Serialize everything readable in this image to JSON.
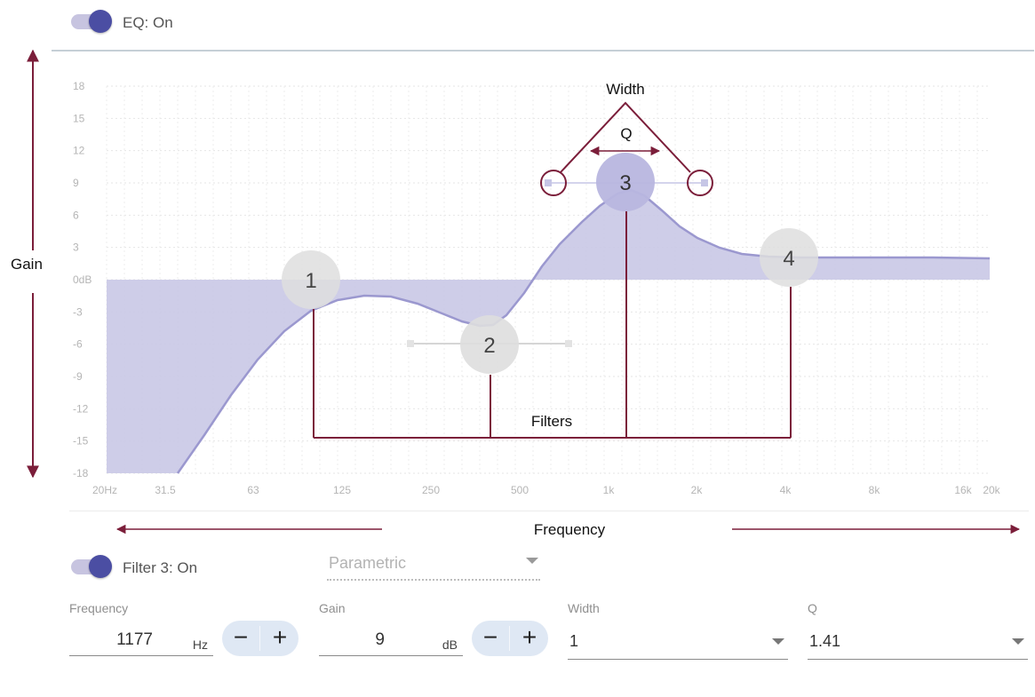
{
  "eq_toggle": {
    "label": "EQ: On",
    "on": true
  },
  "annotations": {
    "gain": "Gain",
    "frequency": "Frequency",
    "width": "Width",
    "q": "Q",
    "filters": "Filters"
  },
  "graph": {
    "y_ticks": [
      "18",
      "15",
      "12",
      "9",
      "6",
      "3",
      "0dB",
      "-3",
      "-6",
      "-9",
      "-12",
      "-15",
      "-18"
    ],
    "x_ticks": [
      "20Hz",
      "31.5",
      "63",
      "125",
      "250",
      "500",
      "1k",
      "2k",
      "4k",
      "8k",
      "16k",
      "20k"
    ],
    "y_range_db": [
      -18,
      18
    ],
    "x_range_hz": [
      20,
      20000
    ],
    "fill_color": "#c9c8e6",
    "curve_color": "#9b98cf",
    "annotation_color": "#7b1e3a",
    "nodes": [
      {
        "label": "1",
        "freq_hz": 100,
        "gain_db": 0
      },
      {
        "label": "2",
        "freq_hz": 400,
        "gain_db": -6
      },
      {
        "label": "3",
        "freq_hz": 1177,
        "gain_db": 9
      },
      {
        "label": "4",
        "freq_hz": 4200,
        "gain_db": 2
      }
    ]
  },
  "filter": {
    "toggle_label": "Filter 3: On",
    "type_value": "Parametric",
    "frequency": {
      "label": "Frequency",
      "value": "1177",
      "unit": "Hz"
    },
    "gain": {
      "label": "Gain",
      "value": "9",
      "unit": "dB"
    },
    "width": {
      "label": "Width",
      "value": "1"
    },
    "q": {
      "label": "Q",
      "value": "1.41"
    },
    "stepper": {
      "minus": "−",
      "plus": "+"
    }
  },
  "colors": {
    "accent": "#4b4ea3",
    "toggle_track": "#c7c4e0",
    "stepper_bg": "#dfe8f4"
  }
}
